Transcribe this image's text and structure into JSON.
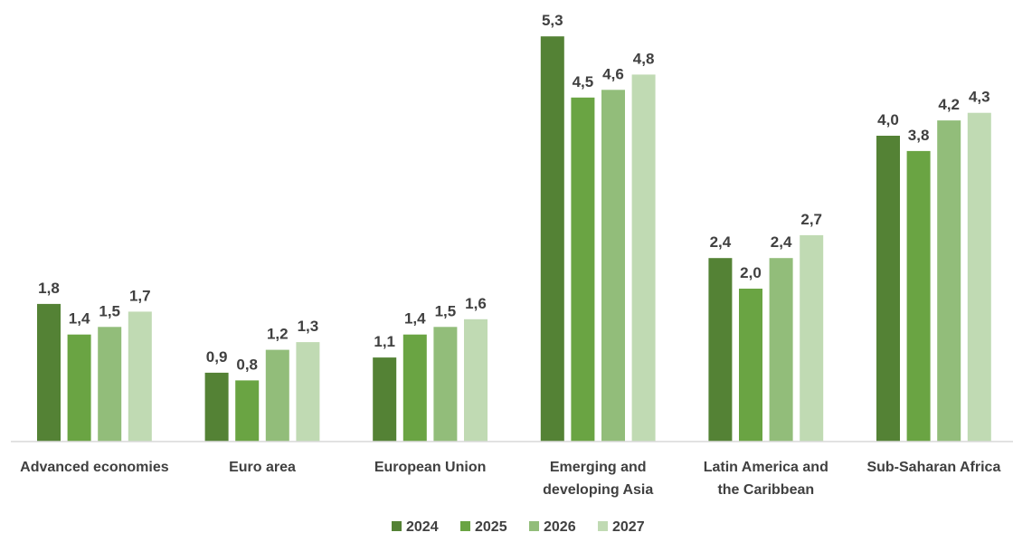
{
  "chart_data": {
    "type": "bar",
    "categories": [
      "Advanced economies",
      "Euro area",
      "European Union",
      "Emerging and developing Asia",
      "Latin America and the Caribbean",
      "Sub-Saharan Africa"
    ],
    "category_lines": [
      [
        "Advanced economies"
      ],
      [
        "Euro area"
      ],
      [
        "European Union"
      ],
      [
        "Emerging and",
        "developing Asia"
      ],
      [
        "Latin America and",
        "the Caribbean"
      ],
      [
        "Sub-Saharan Africa"
      ]
    ],
    "series": [
      {
        "name": "2024",
        "color": "#548235",
        "values": [
          1.8,
          0.9,
          1.1,
          5.3,
          2.4,
          4.0
        ],
        "labels": [
          "1,8",
          "0,9",
          "1,1",
          "5,3",
          "2,4",
          "4,0"
        ]
      },
      {
        "name": "2025",
        "color": "#6AA443",
        "values": [
          1.4,
          0.8,
          1.4,
          4.5,
          2.0,
          3.8
        ],
        "labels": [
          "1,4",
          "0,8",
          "1,4",
          "4,5",
          "2,0",
          "3,8"
        ]
      },
      {
        "name": "2026",
        "color": "#92BD7A",
        "values": [
          1.5,
          1.2,
          1.5,
          4.6,
          2.4,
          4.2
        ],
        "labels": [
          "1,5",
          "1,2",
          "1,5",
          "4,6",
          "2,4",
          "4,2"
        ]
      },
      {
        "name": "2027",
        "color": "#C0DAB3",
        "values": [
          1.7,
          1.3,
          1.6,
          4.8,
          2.7,
          4.3
        ],
        "labels": [
          "1,7",
          "1,3",
          "1,6",
          "4,8",
          "2,7",
          "4,3"
        ]
      }
    ],
    "ylim": [
      0,
      5.3
    ],
    "grid": false,
    "legend_position": "bottom-center",
    "title": "",
    "xlabel": "",
    "ylabel": ""
  }
}
